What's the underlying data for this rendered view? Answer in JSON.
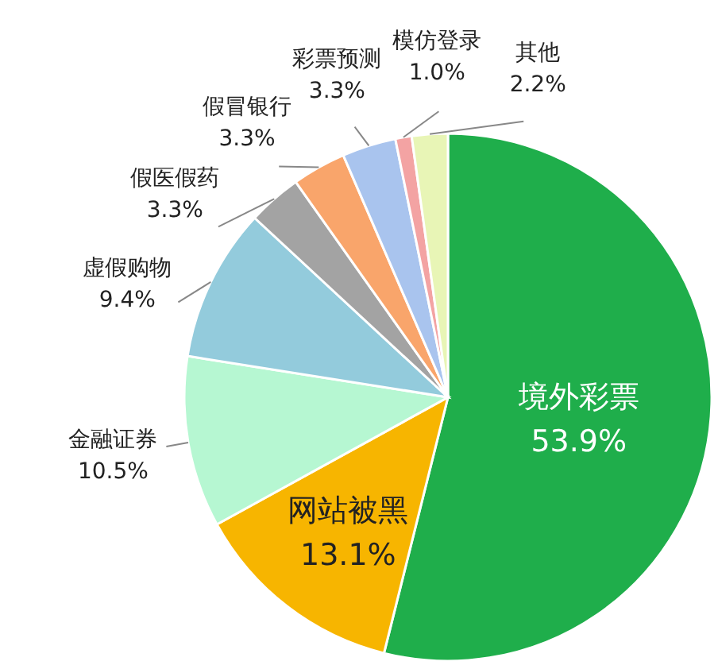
{
  "chart_data": {
    "type": "pie",
    "categories": [
      "境外彩票",
      "网站被黑",
      "金融证券",
      "虚假购物",
      "假医假药",
      "假冒银行",
      "彩票预测",
      "模仿登录",
      "其他"
    ],
    "values": [
      53.9,
      13.1,
      10.5,
      9.4,
      3.3,
      3.3,
      3.3,
      1.0,
      2.2
    ],
    "colors": [
      "#1fae4b",
      "#f7b500",
      "#b6f7d2",
      "#93cbdc",
      "#a3a3a3",
      "#f9a56b",
      "#a9c4ee",
      "#f3a3a3",
      "#e8f5b6"
    ],
    "value_labels": [
      "53.9%",
      "13.1%",
      "10.5%",
      "9.4%",
      "3.3%",
      "3.3%",
      "3.3%",
      "1.0%",
      "2.2%"
    ]
  }
}
